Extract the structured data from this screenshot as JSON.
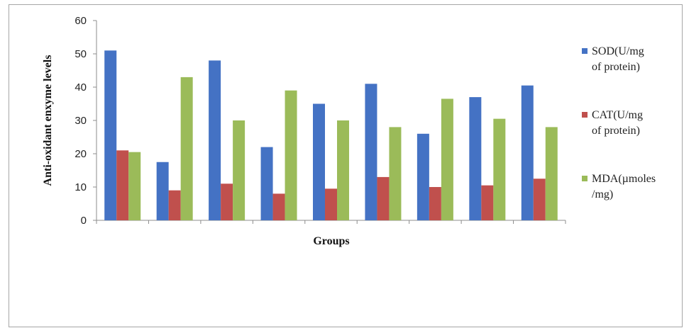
{
  "chart_data": {
    "type": "bar",
    "title": "",
    "xlabel": "Groups",
    "ylabel": "Anti-oxidant enxyme levels",
    "ylim": [
      0,
      60
    ],
    "yticks": [
      0,
      10,
      20,
      30,
      40,
      50,
      60
    ],
    "categories": [
      "",
      "",
      "",
      "",
      "",
      "",
      "",
      "",
      ""
    ],
    "grid": false,
    "legend_position": "right",
    "series": [
      {
        "name": "SOD(U/mg of protein)",
        "legend_lines": [
          "SOD(U/mg",
          "of protein)"
        ],
        "color": "#4472c4",
        "values": [
          51,
          17.5,
          48,
          22,
          35,
          41,
          26,
          37,
          40.5
        ]
      },
      {
        "name": "CAT(U/mg of protein)",
        "legend_lines": [
          "CAT(U/mg",
          "of protein)"
        ],
        "color": "#c0504d",
        "values": [
          21,
          9,
          11,
          8,
          9.5,
          13,
          10,
          10.5,
          12.5
        ]
      },
      {
        "name": "MDA(µmoles /mg)",
        "legend_lines": [
          "MDA(µmoles",
          "/mg)"
        ],
        "color": "#9bbb59",
        "values": [
          20.5,
          43,
          30,
          39,
          30,
          28,
          36.5,
          30.5,
          28
        ]
      }
    ]
  }
}
